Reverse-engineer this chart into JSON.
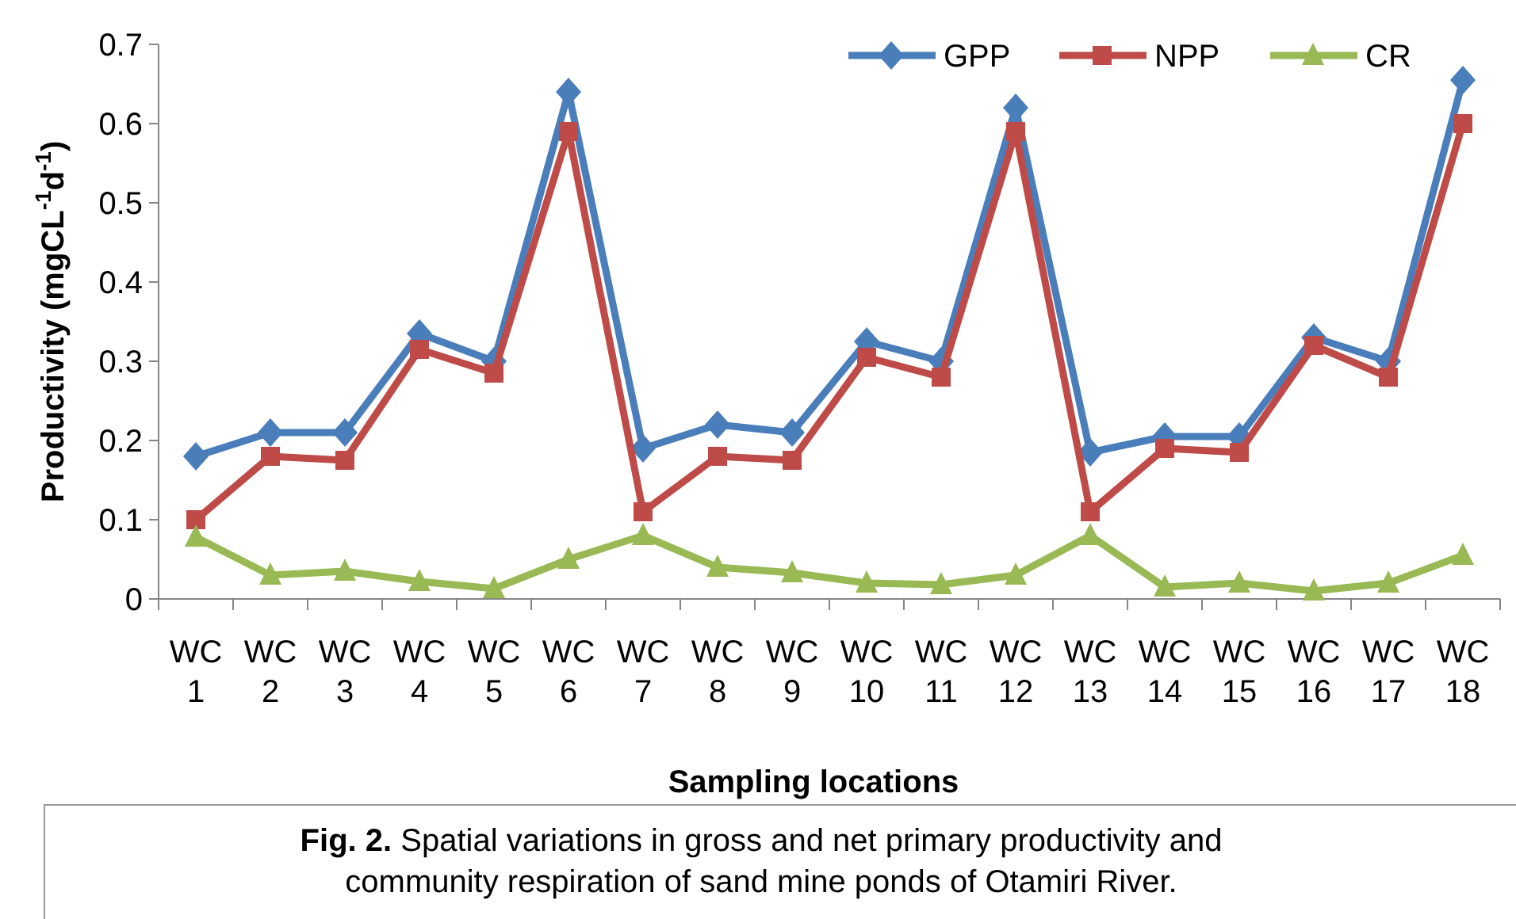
{
  "chart_data": {
    "type": "line",
    "xlabel": "Sampling locations",
    "ylabel": "Productivity (mgCL$^{-1}$d$^{-1}$)",
    "categories": [
      "WC 1",
      "WC 2",
      "WC 3",
      "WC 4",
      "WC 5",
      "WC 6",
      "WC 7",
      "WC 8",
      "WC 9",
      "WC 10",
      "WC 11",
      "WC 12",
      "WC 13",
      "WC 14",
      "WC 15",
      "WC 16",
      "WC 17",
      "WC 18"
    ],
    "series": [
      {
        "name": "GPP",
        "color": "#4a7ebb",
        "marker": "diamond",
        "values": [
          0.18,
          0.21,
          0.21,
          0.335,
          0.3,
          0.64,
          0.19,
          0.22,
          0.21,
          0.325,
          0.3,
          0.62,
          0.185,
          0.205,
          0.205,
          0.33,
          0.3,
          0.655
        ]
      },
      {
        "name": "NPP",
        "color": "#be4b48",
        "marker": "square",
        "values": [
          0.1,
          0.18,
          0.175,
          0.315,
          0.285,
          0.59,
          0.11,
          0.18,
          0.175,
          0.305,
          0.28,
          0.59,
          0.11,
          0.19,
          0.185,
          0.32,
          0.28,
          0.6
        ]
      },
      {
        "name": "CR",
        "color": "#98b954",
        "marker": "triangle",
        "values": [
          0.078,
          0.03,
          0.035,
          0.022,
          0.013,
          0.05,
          0.08,
          0.04,
          0.033,
          0.02,
          0.018,
          0.03,
          0.08,
          0.015,
          0.02,
          0.01,
          0.02,
          0.055
        ]
      }
    ],
    "ylim": [
      0,
      0.7
    ],
    "yticks": [
      0,
      0.1,
      0.2,
      0.3,
      0.4,
      0.5,
      0.6,
      0.7
    ],
    "grid": false,
    "legend": "top right",
    "line_style": "solid",
    "annotations": [
      "Fig. 2.",
      "Spatial variations in gross and net primary productivity and",
      "community respiration of sand mine ponds of Otamiri River."
    ]
  }
}
